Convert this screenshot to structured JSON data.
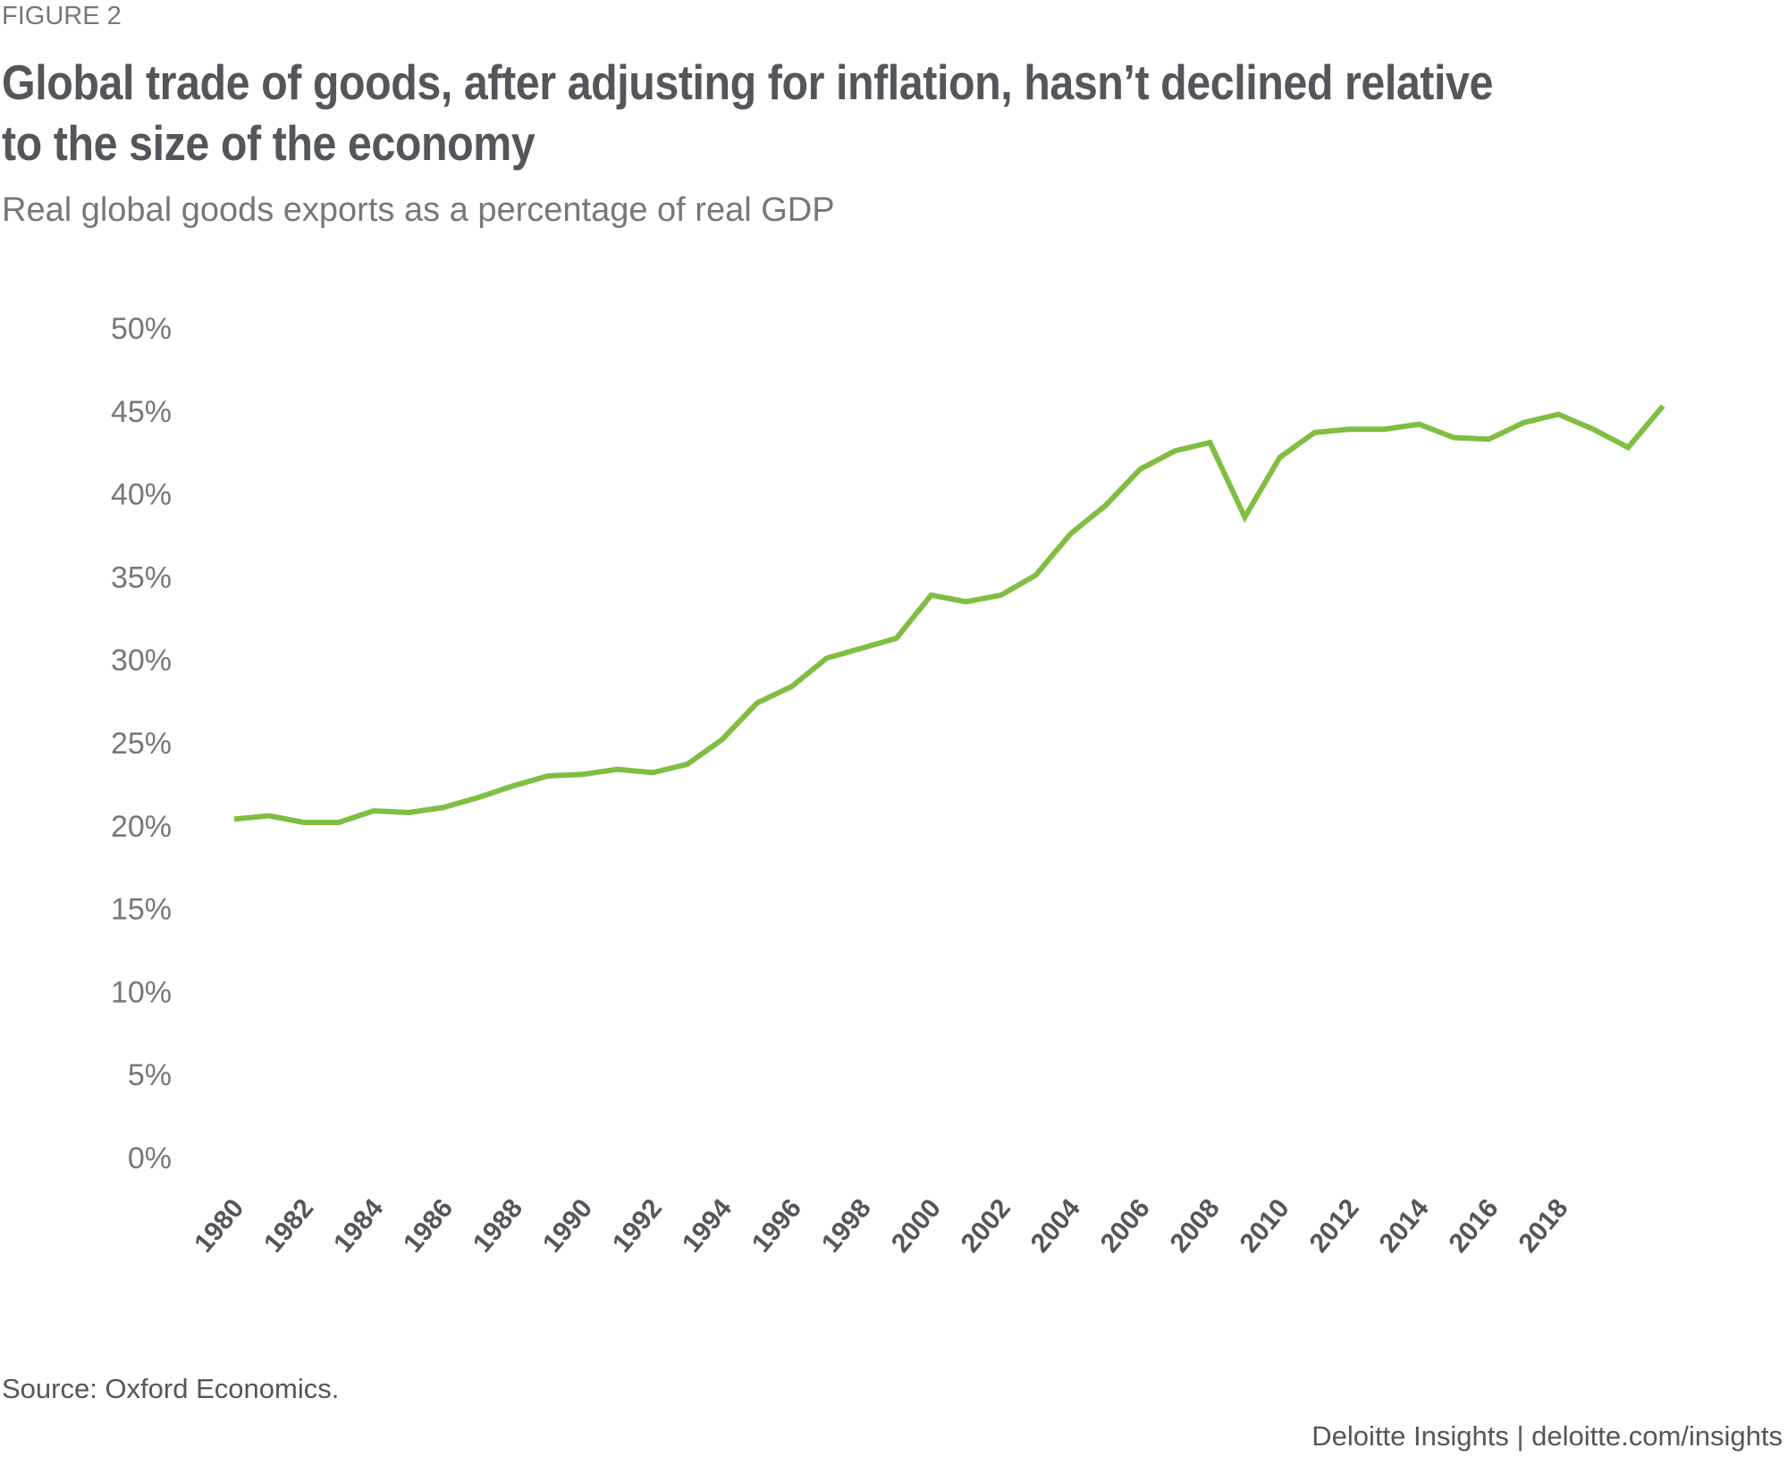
{
  "figure_label": "FIGURE 2",
  "title": "Global trade of goods, after adjusting for inflation, hasn’t declined relative to the size of the economy",
  "subtitle": "Real global goods exports as a percentage of real GDP",
  "source": "Source: Oxford Economics.",
  "credit": "Deloitte Insights | deloitte.com/insights",
  "colors": {
    "line": "#7fbe41",
    "text_dark": "#53565a",
    "text_light": "#75787b"
  },
  "chart_data": {
    "type": "line",
    "title": "Global trade of goods, after adjusting for inflation, hasn’t declined relative to the size of the economy",
    "subtitle": "Real global goods exports as a percentage of real GDP",
    "xlabel": "",
    "ylabel": "",
    "ylim": [
      0,
      50
    ],
    "y_ticks": [
      0,
      5,
      10,
      15,
      20,
      25,
      30,
      35,
      40,
      45,
      50
    ],
    "y_tick_labels": [
      "0%",
      "5%",
      "10%",
      "15%",
      "20%",
      "25%",
      "30%",
      "35%",
      "40%",
      "45%",
      "50%"
    ],
    "x_tick_labels": [
      "1980",
      "1982",
      "1984",
      "1986",
      "1988",
      "1990",
      "1992",
      "1994",
      "1996",
      "1998",
      "2000",
      "2002",
      "2004",
      "2006",
      "2008",
      "2010",
      "2012",
      "2014",
      "2016",
      "2018"
    ],
    "grid": false,
    "legend": "none",
    "x": [
      1980,
      1981,
      1982,
      1983,
      1984,
      1985,
      1986,
      1987,
      1988,
      1989,
      1990,
      1991,
      1992,
      1993,
      1994,
      1995,
      1996,
      1997,
      1998,
      1999,
      2000,
      2001,
      2002,
      2003,
      2004,
      2005,
      2006,
      2007,
      2008,
      2009,
      2010,
      2011,
      2012,
      2013,
      2014,
      2015,
      2016,
      2017,
      2018,
      2019,
      2020,
      2021
    ],
    "series": [
      {
        "name": "Real global goods exports as % of real GDP",
        "color": "#7fbe41",
        "values": [
          20.4,
          20.6,
          20.2,
          20.2,
          20.9,
          20.8,
          21.1,
          21.7,
          22.4,
          23.0,
          23.1,
          23.4,
          23.2,
          23.7,
          25.2,
          27.4,
          28.4,
          30.1,
          30.7,
          31.3,
          33.9,
          33.5,
          33.9,
          35.1,
          37.6,
          39.3,
          41.5,
          42.6,
          43.1,
          38.6,
          42.2,
          43.7,
          43.9,
          43.9,
          44.2,
          43.4,
          43.3,
          44.3,
          44.8,
          43.9,
          42.8,
          45.3
        ]
      }
    ]
  }
}
